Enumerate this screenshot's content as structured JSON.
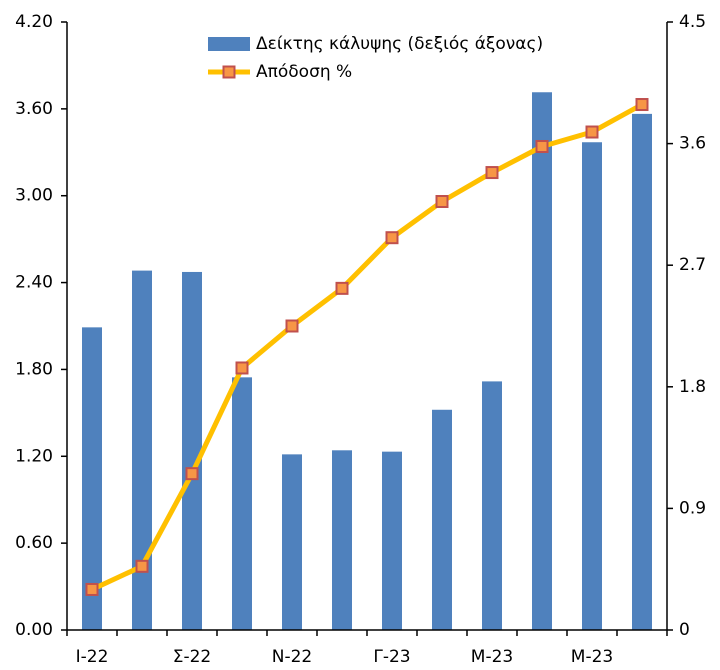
{
  "chart_data": {
    "type": "bar_line",
    "categories": [
      "Ι-22",
      null,
      "Σ-22",
      null,
      "Ν-22",
      null,
      "Γ-23",
      null,
      "Μ-23",
      null,
      "Μ-23",
      null
    ],
    "series": [
      {
        "name": "Δείκτης κάλυψης (δεξιός άξονας)",
        "type": "bar",
        "axis": "y2",
        "color": "#4f81bd",
        "values": [
          2.24,
          2.66,
          2.65,
          1.87,
          1.3,
          1.33,
          1.32,
          1.63,
          1.84,
          3.98,
          3.61,
          3.82
        ]
      },
      {
        "name": "Απόδοση %",
        "type": "line",
        "axis": "y",
        "color": "#ffc000",
        "marker_color": "#f79646",
        "marker_edge": "#c0504d",
        "values": [
          0.28,
          0.44,
          1.08,
          1.81,
          2.1,
          2.36,
          2.71,
          2.96,
          3.16,
          3.34,
          3.44,
          3.63
        ]
      }
    ],
    "ylim": [
      0,
      4.2
    ],
    "yticks": [
      {
        "value": 0,
        "label": "0.00"
      },
      {
        "value": 0.6,
        "label": "0.60"
      },
      {
        "value": 1.2,
        "label": "1.20"
      },
      {
        "value": 1.8,
        "label": "1.80"
      },
      {
        "value": 2.4,
        "label": "2.40"
      },
      {
        "value": 3.0,
        "label": "3.00"
      },
      {
        "value": 3.6,
        "label": "3.60"
      },
      {
        "value": 4.2,
        "label": "4.20"
      }
    ],
    "y2lim": [
      0,
      4.5
    ],
    "y2ticks": [
      0,
      0.9,
      1.8,
      2.7,
      3.6,
      4.5
    ],
    "grid": false,
    "legend": "top"
  }
}
